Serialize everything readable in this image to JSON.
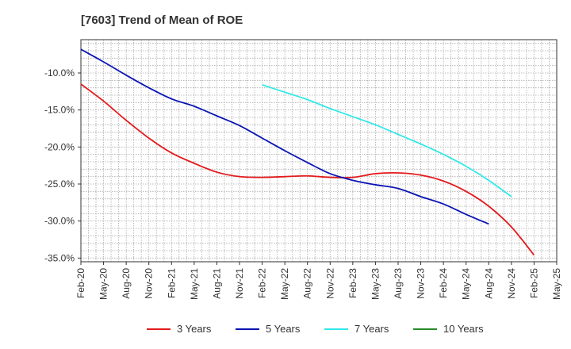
{
  "chart_data": {
    "type": "line",
    "title": "[7603]  Trend of Mean of ROE",
    "xlabel": "",
    "ylabel": "",
    "ylim": [
      -35.5,
      -5.5
    ],
    "yticks": [
      -35.0,
      -30.0,
      -25.0,
      -20.0,
      -15.0,
      -10.0
    ],
    "ytick_labels": [
      "-35.0%",
      "-30.0%",
      "-25.0%",
      "-20.0%",
      "-15.0%",
      "-10.0%"
    ],
    "x_categories": [
      "Feb-20",
      "May-20",
      "Aug-20",
      "Nov-20",
      "Feb-21",
      "May-21",
      "Aug-21",
      "Nov-21",
      "Feb-22",
      "May-22",
      "Aug-22",
      "Nov-22",
      "Feb-23",
      "May-23",
      "Aug-23",
      "Nov-23",
      "Feb-24",
      "May-24",
      "Aug-24",
      "Nov-24",
      "Feb-25",
      "May-25"
    ],
    "grid": true,
    "legend_position": "bottom",
    "series": [
      {
        "name": "3 Years",
        "color": "#e31a1c",
        "values": [
          -11.5,
          -13.8,
          -16.4,
          -18.8,
          -20.8,
          -22.2,
          -23.4,
          -24.0,
          -24.1,
          -24.0,
          -23.9,
          -24.1,
          -24.1,
          -23.6,
          -23.5,
          -23.8,
          -24.6,
          -26.0,
          -28.0,
          -30.8,
          -34.6,
          null
        ]
      },
      {
        "name": "5 Years",
        "color": "#0a14b4",
        "values": [
          -6.8,
          -8.5,
          -10.3,
          -12.0,
          -13.5,
          -14.5,
          -15.8,
          -17.1,
          -18.8,
          -20.5,
          -22.1,
          -23.6,
          -24.5,
          -25.1,
          -25.6,
          -26.7,
          -27.7,
          -29.1,
          -30.4,
          null,
          null,
          null
        ],
        "x_offset": 0
      },
      {
        "name": "7 Years",
        "color": "#33e8e8",
        "values": [
          null,
          null,
          null,
          null,
          null,
          null,
          null,
          null,
          -11.6,
          -12.6,
          -13.6,
          -14.8,
          -15.9,
          -17.0,
          -18.3,
          -19.6,
          -21.0,
          -22.6,
          -24.5,
          -26.7,
          null,
          null
        ]
      },
      {
        "name": "10 Years",
        "color": "#2a8a2a",
        "values": []
      }
    ]
  },
  "legend": [
    {
      "label": "3 Years",
      "color": "#e31a1c"
    },
    {
      "label": "5 Years",
      "color": "#0a14b4"
    },
    {
      "label": "7 Years",
      "color": "#33e8e8"
    },
    {
      "label": "10 Years",
      "color": "#2a8a2a"
    }
  ]
}
